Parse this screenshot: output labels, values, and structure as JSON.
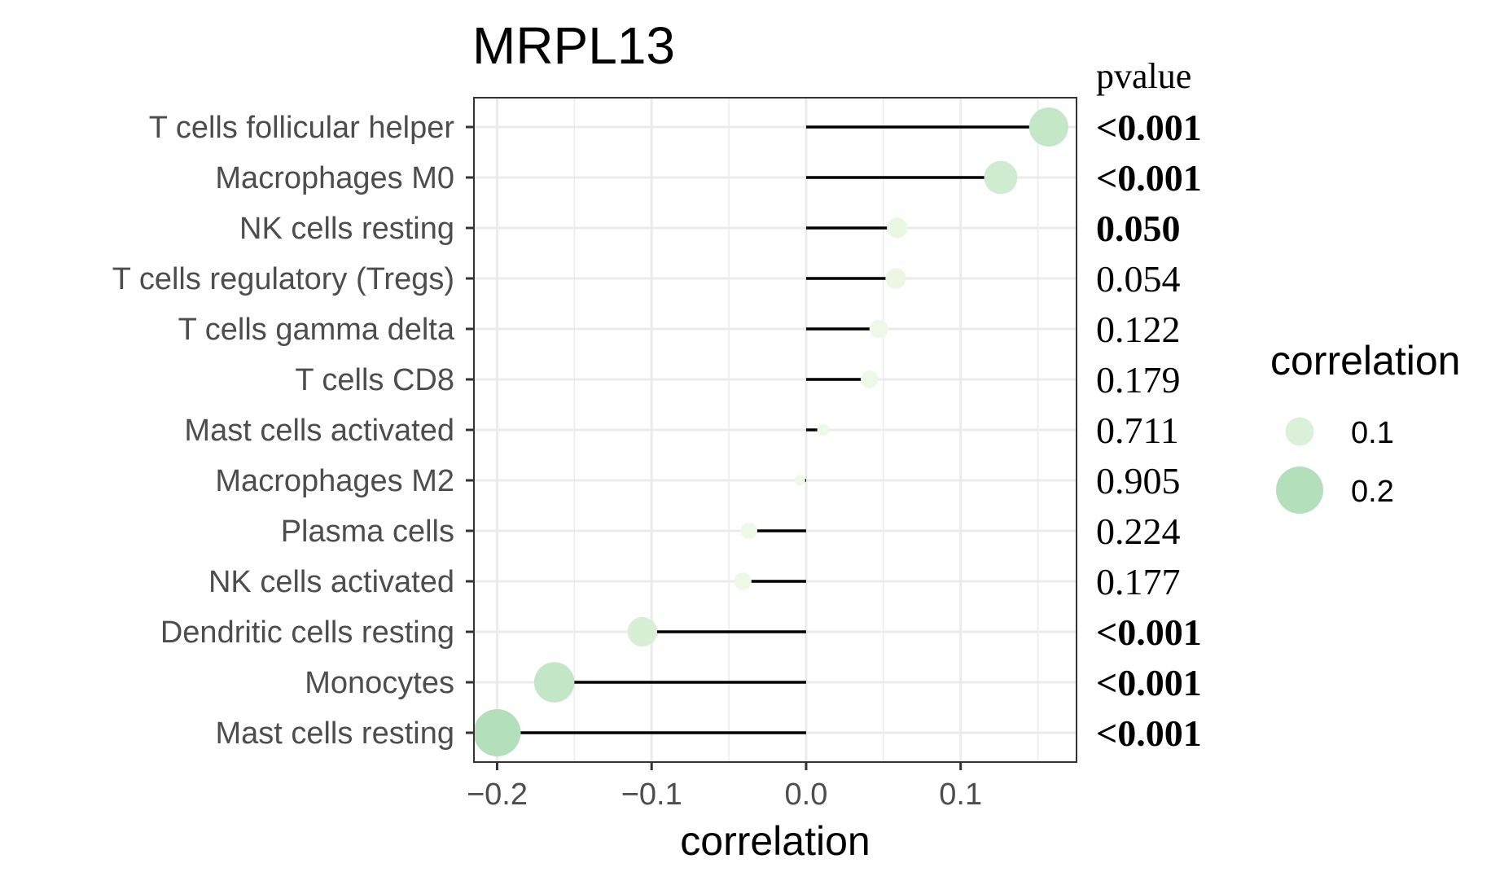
{
  "chart_data": {
    "type": "lollipop",
    "title": "MRPL13",
    "xlabel": "correlation",
    "xlim": [
      -0.215,
      0.175
    ],
    "xticks": [
      -0.2,
      -0.1,
      0.0,
      0.1
    ],
    "xtick_labels": [
      "−0.2",
      "−0.1",
      "0.0",
      "0.1"
    ],
    "grid": true,
    "pvalue_header": "pvalue",
    "rows": [
      {
        "label": "T cells follicular helper",
        "correlation": 0.157,
        "pvalue": "<0.001",
        "significant": true
      },
      {
        "label": "Macrophages M0",
        "correlation": 0.126,
        "pvalue": "<0.001",
        "significant": true
      },
      {
        "label": "NK cells resting",
        "correlation": 0.059,
        "pvalue": "0.050",
        "significant": true
      },
      {
        "label": "T cells regulatory (Tregs)",
        "correlation": 0.058,
        "pvalue": "0.054",
        "significant": false
      },
      {
        "label": "T cells gamma delta",
        "correlation": 0.047,
        "pvalue": "0.122",
        "significant": false
      },
      {
        "label": "T cells CD8",
        "correlation": 0.041,
        "pvalue": "0.179",
        "significant": false
      },
      {
        "label": "Mast cells activated",
        "correlation": 0.011,
        "pvalue": "0.711",
        "significant": false
      },
      {
        "label": "Macrophages M2",
        "correlation": -0.004,
        "pvalue": "0.905",
        "significant": false
      },
      {
        "label": "Plasma cells",
        "correlation": -0.037,
        "pvalue": "0.224",
        "significant": false
      },
      {
        "label": "NK cells activated",
        "correlation": -0.041,
        "pvalue": "0.177",
        "significant": false
      },
      {
        "label": "Dendritic cells resting",
        "correlation": -0.106,
        "pvalue": "<0.001",
        "significant": true
      },
      {
        "label": "Monocytes",
        "correlation": -0.163,
        "pvalue": "<0.001",
        "significant": true
      },
      {
        "label": "Mast cells resting",
        "correlation": -0.2,
        "pvalue": "<0.001",
        "significant": true
      }
    ],
    "legend": {
      "title": "correlation",
      "placement": "right",
      "entries": [
        {
          "label": "0.1",
          "value": 0.1
        },
        {
          "label": "0.2",
          "value": 0.2
        }
      ]
    },
    "colors": {
      "point_low": "#eef8e6",
      "point_high": "#b3e0bb",
      "segment": "#000000",
      "grid": "#ebebeb",
      "panel_border": "#333333"
    }
  }
}
